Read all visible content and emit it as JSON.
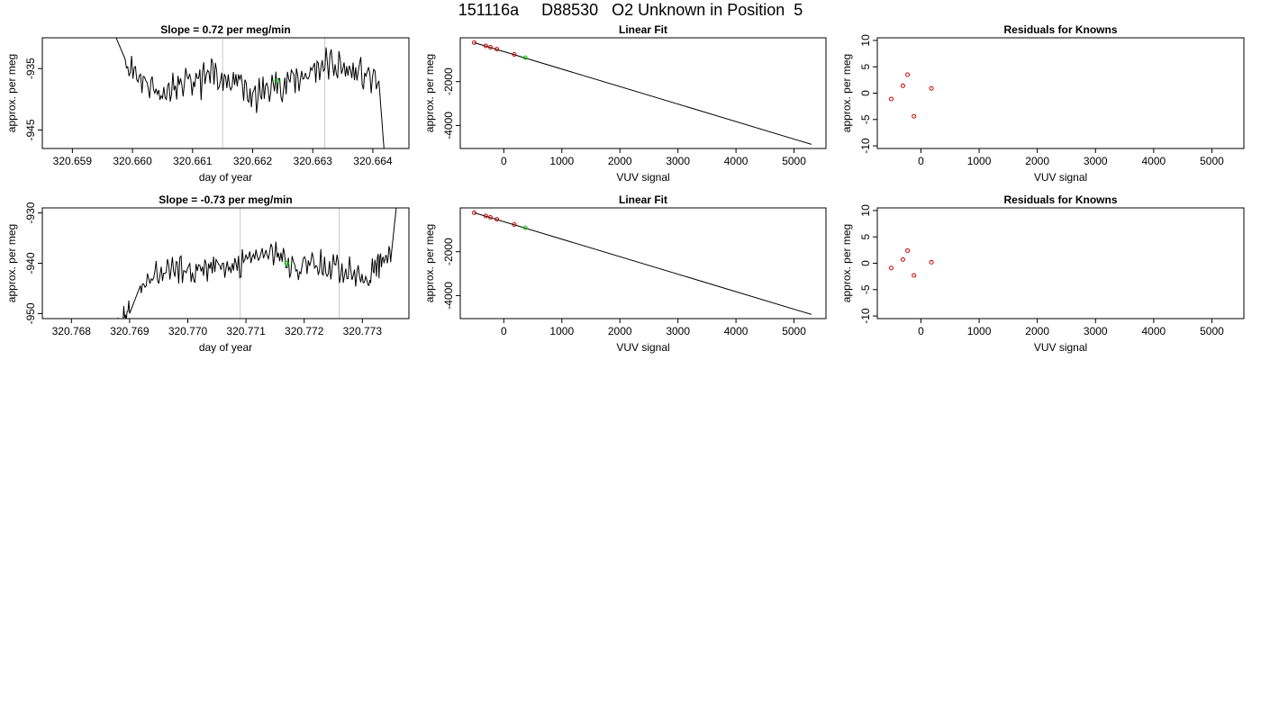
{
  "page_title": "151116a     D88530   O2 Unknown in Position  5",
  "chart_data": [
    {
      "type": "line",
      "title": "Slope =  0.72  per meg/min",
      "xlabel": "day of year",
      "ylabel": "approx. per meg",
      "xlim": [
        320.6585,
        320.6646
      ],
      "ylim": [
        -948,
        -930
      ],
      "x_ticks": [
        "320.659",
        "320.660",
        "320.661",
        "320.662",
        "320.663",
        "320.664"
      ],
      "y_ticks": [
        "-935",
        "-945"
      ],
      "vertical_lines": [
        320.6615,
        320.6632
      ],
      "series": [
        {
          "x": [
            320.6596,
            320.6599,
            320.6602,
            320.6605,
            320.6608,
            320.6611,
            320.6614,
            320.6617,
            320.662,
            320.6623,
            320.6626,
            320.6629,
            320.6632,
            320.6635,
            320.6638,
            320.6641,
            320.6642
          ],
          "y": [
            -927,
            -934,
            -937,
            -939,
            -938,
            -937,
            -936,
            -937,
            -940,
            -938,
            -937,
            -936,
            -934,
            -935,
            -936,
            -937,
            -950
          ]
        }
      ],
      "highlight_points": [
        {
          "x": 320.6624,
          "y": -937,
          "color": "#00cc00"
        }
      ]
    },
    {
      "type": "line",
      "title": "Linear Fit",
      "xlabel": "VUV signal",
      "ylabel": "approx. per meg",
      "xlim": [
        -750,
        5550
      ],
      "ylim": [
        -5050,
        0
      ],
      "x_ticks": [
        "0",
        "1000",
        "2000",
        "3000",
        "4000",
        "5000"
      ],
      "y_ticks": [
        "-2000",
        "-4000"
      ],
      "fit_line": {
        "x": [
          -510,
          5300
        ],
        "y": [
          -220,
          -4860
        ]
      },
      "points": [
        {
          "x": -510,
          "y": -220,
          "color": "#cc0000"
        },
        {
          "x": -310,
          "y": -370,
          "color": "#cc0000"
        },
        {
          "x": -230,
          "y": -430,
          "color": "#cc0000"
        },
        {
          "x": -120,
          "y": -520,
          "color": "#cc0000"
        },
        {
          "x": 180,
          "y": -760,
          "color": "#cc0000"
        },
        {
          "x": 370,
          "y": -910,
          "color": "#00cc00"
        }
      ]
    },
    {
      "type": "scatter",
      "title": "Residuals for Knowns",
      "xlabel": "VUV signal",
      "ylabel": "approx. per meg",
      "xlim": [
        -750,
        5550
      ],
      "ylim": [
        -10.5,
        10.5
      ],
      "x_ticks": [
        "0",
        "1000",
        "2000",
        "3000",
        "4000",
        "5000"
      ],
      "y_ticks": [
        "-10",
        "-5",
        "0",
        "5",
        "10"
      ],
      "points": [
        {
          "x": -510,
          "y": -1.1,
          "color": "#cc0000"
        },
        {
          "x": -310,
          "y": 1.4,
          "color": "#cc0000"
        },
        {
          "x": -230,
          "y": 3.5,
          "color": "#cc0000"
        },
        {
          "x": -120,
          "y": -4.4,
          "color": "#cc0000"
        },
        {
          "x": 180,
          "y": 0.9,
          "color": "#cc0000"
        }
      ]
    },
    {
      "type": "line",
      "title": "Slope =  -0.73  per meg/min",
      "xlabel": "day of year",
      "ylabel": "approx. per meg",
      "xlim": [
        320.7675,
        320.7738
      ],
      "ylim": [
        -951,
        -929
      ],
      "x_ticks": [
        "320.768",
        "320.769",
        "320.770",
        "320.771",
        "320.772",
        "320.773"
      ],
      "y_ticks": [
        "-930",
        "-940",
        "-950"
      ],
      "vertical_lines": [
        320.7709,
        320.7726
      ],
      "series": [
        {
          "x": [
            320.7675,
            320.7688,
            320.769,
            320.7692,
            320.7695,
            320.7698,
            320.7701,
            320.7704,
            320.7707,
            320.771,
            320.7713,
            320.7716,
            320.7719,
            320.7722,
            320.7725,
            320.7728,
            320.7731,
            320.7733,
            320.7735,
            320.7736
          ],
          "y": [
            -953,
            -953,
            -950,
            -944,
            -942,
            -941,
            -942,
            -940,
            -941,
            -940,
            -938,
            -939,
            -941,
            -940,
            -941,
            -941,
            -943,
            -940,
            -938,
            -927
          ]
        }
      ],
      "highlight_points": [
        {
          "x": 320.7717,
          "y": -940,
          "color": "#00cc00"
        }
      ]
    },
    {
      "type": "line",
      "title": "Linear Fit",
      "xlabel": "VUV signal",
      "ylabel": "approx. per meg",
      "xlim": [
        -750,
        5550
      ],
      "ylim": [
        -5050,
        0
      ],
      "x_ticks": [
        "0",
        "1000",
        "2000",
        "3000",
        "4000",
        "5000"
      ],
      "y_ticks": [
        "-2000",
        "-4000"
      ],
      "fit_line": {
        "x": [
          -510,
          5300
        ],
        "y": [
          -220,
          -4860
        ]
      },
      "points": [
        {
          "x": -510,
          "y": -220,
          "color": "#cc0000"
        },
        {
          "x": -310,
          "y": -370,
          "color": "#cc0000"
        },
        {
          "x": -230,
          "y": -430,
          "color": "#cc0000"
        },
        {
          "x": -120,
          "y": -520,
          "color": "#cc0000"
        },
        {
          "x": 180,
          "y": -760,
          "color": "#cc0000"
        },
        {
          "x": 370,
          "y": -910,
          "color": "#00cc00"
        }
      ]
    },
    {
      "type": "scatter",
      "title": "Residuals for Knowns",
      "xlabel": "VUV signal",
      "ylabel": "approx. per meg",
      "xlim": [
        -750,
        5550
      ],
      "ylim": [
        -10.5,
        10.5
      ],
      "x_ticks": [
        "0",
        "1000",
        "2000",
        "3000",
        "4000",
        "5000"
      ],
      "y_ticks": [
        "-10",
        "-5",
        "0",
        "5",
        "10"
      ],
      "points": [
        {
          "x": -510,
          "y": -0.9,
          "color": "#cc0000"
        },
        {
          "x": -310,
          "y": 0.7,
          "color": "#cc0000"
        },
        {
          "x": -230,
          "y": 2.4,
          "color": "#cc0000"
        },
        {
          "x": -120,
          "y": -2.3,
          "color": "#cc0000"
        },
        {
          "x": 180,
          "y": 0.2,
          "color": "#cc0000"
        }
      ]
    }
  ]
}
